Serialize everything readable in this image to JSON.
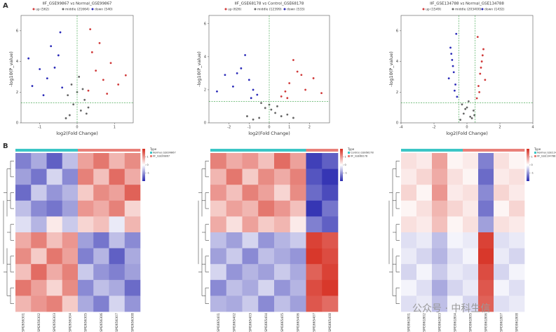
{
  "panel_labels": [
    "A",
    "B"
  ],
  "watermark": "公众号 · 中科生信",
  "chart_data": [
    {
      "type": "scatter",
      "title": "IIF_GSE99867 vs Normal_GSE99867",
      "x_label": "log2(Fold Change)",
      "y_label": "-log10(P_value)",
      "xlim": [
        -1.5,
        1.5
      ],
      "xticks": [
        -1,
        0,
        1
      ],
      "ylim": [
        0,
        7
      ],
      "yticks": [
        0,
        2,
        4,
        6
      ],
      "cutoff_x": [
        0
      ],
      "cutoff_y": [
        1.3
      ],
      "series": [
        {
          "name": "up (562)",
          "color": "#d03a3a",
          "x": [
            0.3,
            0.5,
            0.4,
            0.7,
            0.9,
            0.6,
            1.1,
            0.35,
            0.8,
            1.3
          ],
          "y": [
            2.1,
            3.4,
            4.6,
            2.8,
            3.9,
            5.2,
            2.5,
            6.1,
            1.9,
            3.1
          ]
        },
        {
          "name": "middle (21664)",
          "color": "#666666",
          "x": [
            -0.2,
            -0.1,
            0,
            0.1,
            0.2,
            -0.3,
            0.3,
            0.05,
            -0.15,
            0.15,
            0.25,
            -0.25
          ],
          "y": [
            0.5,
            1.2,
            2.0,
            0.8,
            1.5,
            0.3,
            1.0,
            3.0,
            2.5,
            2.2,
            0.6,
            1.8
          ]
        },
        {
          "name": "down (540)",
          "color": "#2a2ab8",
          "x": [
            -0.4,
            -0.6,
            -0.5,
            -0.8,
            -1.0,
            -0.7,
            -1.2,
            -0.45,
            -0.9,
            -1.3
          ],
          "y": [
            2.3,
            3.6,
            4.4,
            2.9,
            3.5,
            5.0,
            2.4,
            5.9,
            1.8,
            4.2
          ]
        }
      ]
    },
    {
      "type": "scatter",
      "title": "IIF_GSE68178 vs Control_GSE68178",
      "x_label": "log2(Fold Change)",
      "y_label": "-log10(P_value)",
      "xlim": [
        -3,
        3
      ],
      "xticks": [
        -2,
        -1,
        0,
        1,
        2
      ],
      "ylim": [
        0,
        6.5
      ],
      "yticks": [
        0,
        2,
        4,
        6
      ],
      "cutoff_x": [
        0
      ],
      "cutoff_y": [
        1.3
      ],
      "series": [
        {
          "name": "up (626)",
          "color": "#d03a3a",
          "x": [
            0.6,
            1.0,
            1.4,
            0.8,
            1.8,
            1.2,
            2.2,
            0.9,
            1.6,
            2.6
          ],
          "y": [
            1.6,
            2.4,
            3.1,
            1.9,
            2.0,
            3.8,
            2.7,
            1.5,
            2.9,
            1.8
          ]
        },
        {
          "name": "middle (12399)",
          "color": "#666666",
          "x": [
            -0.5,
            -0.2,
            0,
            0.3,
            0.6,
            -0.8,
            0.9,
            0.1,
            -0.4,
            0.4,
            1.2,
            -1.1
          ],
          "y": [
            0.3,
            0.9,
            1.1,
            0.6,
            0.4,
            0.2,
            0.5,
            0.8,
            1.2,
            1.0,
            0.3,
            0.4
          ]
        },
        {
          "name": "down (533)",
          "color": "#2a2ab8",
          "x": [
            -0.6,
            -1.0,
            -1.4,
            -0.8,
            -1.8,
            -1.2,
            -2.2,
            -0.9,
            -1.6,
            -2.6
          ],
          "y": [
            1.7,
            2.6,
            3.3,
            2.0,
            2.2,
            4.1,
            2.9,
            1.5,
            3.0,
            1.9
          ]
        }
      ]
    },
    {
      "type": "scatter",
      "title": "IIF_GSE134788 vs Normal_GSE134788",
      "x_label": "log2(Fold Change)",
      "y_label": "-log10(P_value)",
      "xlim": [
        -4,
        4
      ],
      "xticks": [
        -4,
        -2,
        0,
        2,
        4
      ],
      "ylim": [
        0,
        7
      ],
      "yticks": [
        0,
        2,
        4,
        6
      ],
      "cutoff_x": [
        -0.5,
        0.5
      ],
      "cutoff_y": [
        1.3
      ],
      "series": [
        {
          "name": "up (1549)",
          "color": "#d03a3a",
          "x": [
            0.6,
            0.7,
            0.8,
            0.9,
            1.0,
            0.65,
            0.75,
            0.85,
            1.1,
            0.95
          ],
          "y": [
            1.6,
            2.4,
            3.2,
            4.0,
            4.8,
            5.6,
            2.0,
            3.6,
            2.8,
            4.4
          ]
        },
        {
          "name": "middle (203400)",
          "color": "#666666",
          "x": [
            -0.4,
            -0.2,
            0,
            0.2,
            0.4,
            -0.3,
            0.3,
            0.1,
            -0.1,
            0.45
          ],
          "y": [
            0.2,
            0.6,
            1.0,
            0.4,
            0.8,
            1.2,
            0.3,
            1.4,
            0.9,
            0.5
          ]
        },
        {
          "name": "down (1432)",
          "color": "#2a2ab8",
          "x": [
            -0.6,
            -0.7,
            -0.8,
            -0.9,
            -1.0,
            -0.65,
            -0.75,
            -0.85,
            -1.1,
            -0.95
          ],
          "y": [
            1.7,
            2.5,
            3.3,
            4.1,
            4.9,
            5.8,
            2.1,
            3.7,
            2.9,
            4.5
          ]
        }
      ]
    },
    {
      "type": "heatmap",
      "legend_title": "Type",
      "colors": [
        "#2b2bb0",
        "#ffffff",
        "#d62d20"
      ],
      "scale_lim": [
        -2,
        2
      ],
      "scale_ticks": [
        -1,
        0,
        1
      ],
      "groups": [
        {
          "name": "Normal_GSE99867",
          "color": "#3cc6c6"
        },
        {
          "name": "IIF_GSE99867",
          "color": "#e98079"
        }
      ],
      "col_groups": [
        0,
        0,
        0,
        0,
        1,
        1,
        1,
        1
      ],
      "categories": [
        "GSM2656301",
        "GSM2656302",
        "GSM2656303",
        "GSM2656304",
        "GSM2656305",
        "GSM2656306",
        "GSM2656307",
        "GSM2656308"
      ],
      "values": [
        [
          -1.2,
          -0.8,
          -1.5,
          -0.6,
          0.9,
          1.3,
          0.7,
          1.1
        ],
        [
          -0.9,
          -1.3,
          -0.4,
          -1.1,
          1.2,
          0.6,
          1.4,
          0.8
        ],
        [
          -1.4,
          -0.5,
          -1.0,
          -0.7,
          0.5,
          1.1,
          0.9,
          1.5
        ],
        [
          -0.6,
          -1.1,
          -1.3,
          -0.9,
          1.0,
          0.8,
          1.2,
          0.4
        ],
        [
          -0.3,
          -0.7,
          0.2,
          -0.5,
          0.4,
          0.6,
          -0.2,
          0.7
        ],
        [
          0.8,
          1.2,
          0.6,
          1.0,
          -0.9,
          -1.3,
          -0.6,
          -1.1
        ],
        [
          1.1,
          0.5,
          1.3,
          0.9,
          -1.2,
          -0.7,
          -1.5,
          -0.8
        ],
        [
          0.6,
          1.4,
          0.8,
          1.2,
          -0.5,
          -1.0,
          -1.2,
          -0.9
        ],
        [
          1.3,
          0.9,
          0.4,
          1.1,
          -1.1,
          -0.6,
          -0.8,
          -1.4
        ],
        [
          0.7,
          1.0,
          1.2,
          0.5,
          -0.8,
          -1.2,
          -0.4,
          -1.0
        ]
      ]
    },
    {
      "type": "heatmap",
      "legend_title": "Type",
      "colors": [
        "#2b2bb0",
        "#ffffff",
        "#d62d20"
      ],
      "scale_lim": [
        -2,
        2
      ],
      "scale_ticks": [
        -1,
        0,
        1
      ],
      "groups": [
        {
          "name": "Control_GSE68178",
          "color": "#3cc6c6"
        },
        {
          "name": "IIF_GSE68178",
          "color": "#e98079"
        }
      ],
      "col_groups": [
        0,
        0,
        0,
        0,
        0,
        0,
        1,
        1
      ],
      "categories": [
        "GSM1665401",
        "GSM1665402",
        "GSM1665403",
        "GSM1665404",
        "GSM1665405",
        "GSM1665406",
        "GSM1665407",
        "GSM1665408"
      ],
      "values": [
        [
          1.2,
          0.8,
          1.0,
          0.6,
          1.4,
          0.9,
          -1.8,
          -1.5
        ],
        [
          0.7,
          1.3,
          0.5,
          1.1,
          0.8,
          1.2,
          -1.6,
          -1.9
        ],
        [
          1.0,
          0.6,
          1.2,
          0.9,
          0.4,
          1.1,
          -1.4,
          -1.7
        ],
        [
          0.5,
          0.9,
          0.7,
          1.3,
          1.0,
          0.6,
          -1.9,
          -1.3
        ],
        [
          0.8,
          0.3,
          0.9,
          0.5,
          0.7,
          0.2,
          -1.2,
          -1.5
        ],
        [
          -0.6,
          -0.9,
          -0.4,
          -1.0,
          -0.7,
          -0.5,
          1.8,
          1.6
        ],
        [
          -0.9,
          -0.5,
          -1.1,
          -0.6,
          -0.8,
          -1.0,
          1.9,
          1.7
        ],
        [
          -0.4,
          -1.0,
          -0.7,
          -0.9,
          -0.5,
          -0.8,
          1.5,
          1.8
        ],
        [
          -1.1,
          -0.6,
          -0.8,
          -0.4,
          -1.0,
          -0.7,
          1.7,
          1.9
        ],
        [
          -0.7,
          -0.8,
          -0.5,
          -1.1,
          -0.6,
          -0.9,
          1.6,
          1.4
        ]
      ]
    },
    {
      "type": "heatmap",
      "legend_title": "Type",
      "colors": [
        "#2b2bb0",
        "#ffffff",
        "#d62d20"
      ],
      "scale_lim": [
        -2,
        2
      ],
      "scale_ticks": [
        -1,
        0,
        1
      ],
      "groups": [
        {
          "name": "Normal_GSE134788",
          "color": "#3cc6c6"
        },
        {
          "name": "IIF_GSE134788",
          "color": "#e98079"
        }
      ],
      "col_groups": [
        0,
        0,
        0,
        0,
        1,
        1,
        1,
        1
      ],
      "categories": [
        "GSM3961801",
        "GSM3961802",
        "GSM3961803",
        "GSM3961804",
        "GSM3961805",
        "GSM3961806",
        "GSM3961807",
        "GSM3961808"
      ],
      "values": [
        [
          0.3,
          0.2,
          0.9,
          0.1,
          0.2,
          -1.2,
          0.3,
          0.1
        ],
        [
          0.2,
          0.4,
          0.8,
          0.3,
          0.1,
          -1.4,
          0.2,
          0.3
        ],
        [
          0.4,
          0.1,
          1.0,
          0.2,
          0.3,
          -1.1,
          0.4,
          0.2
        ],
        [
          0.1,
          0.3,
          0.7,
          0.4,
          0.2,
          -1.3,
          0.1,
          0.4
        ],
        [
          0.3,
          0.2,
          0.6,
          0.1,
          0.3,
          -0.9,
          0.3,
          0.2
        ],
        [
          -0.3,
          -0.2,
          -0.6,
          -0.1,
          -0.2,
          1.8,
          -0.3,
          -0.2
        ],
        [
          -0.2,
          -0.4,
          -0.7,
          -0.3,
          -0.1,
          1.9,
          -0.2,
          -0.4
        ],
        [
          -0.4,
          -0.1,
          -0.5,
          -0.2,
          -0.3,
          1.7,
          -0.4,
          -0.1
        ],
        [
          -0.1,
          -0.3,
          -0.8,
          -0.4,
          -0.2,
          1.6,
          -0.1,
          -0.3
        ],
        [
          -0.3,
          -0.2,
          -0.6,
          -0.1,
          -0.4,
          1.5,
          -0.3,
          -0.2
        ]
      ]
    }
  ]
}
